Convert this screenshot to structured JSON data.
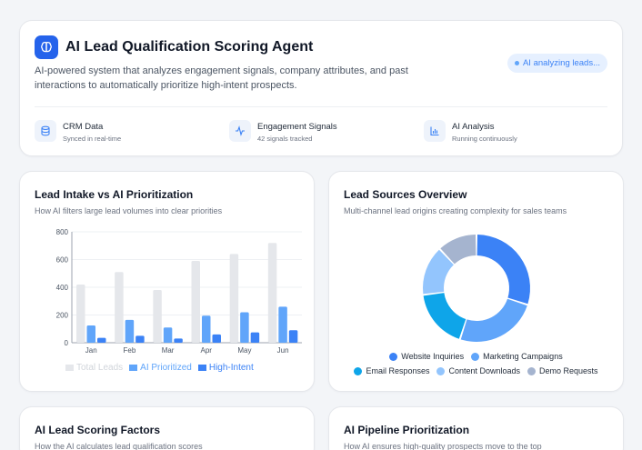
{
  "header": {
    "title": "AI Lead Qualification Scoring Agent",
    "description": "AI-powered system that analyzes engagement signals, company attributes, and past interactions to automatically prioritize high-intent prospects.",
    "status_pill": "AI analyzing leads...",
    "stats": [
      {
        "label": "CRM Data",
        "sub": "Synced in real-time",
        "icon": "database-icon"
      },
      {
        "label": "Engagement Signals",
        "sub": "42 signals tracked",
        "icon": "activity-icon"
      },
      {
        "label": "AI Analysis",
        "sub": "Running continuously",
        "icon": "bar-chart-icon"
      }
    ]
  },
  "intake_card": {
    "title": "Lead Intake vs AI Prioritization",
    "subtitle": "How AI filters large lead volumes into clear priorities"
  },
  "sources_card": {
    "title": "Lead Sources Overview",
    "subtitle": "Multi-channel lead origins creating complexity for sales teams"
  },
  "scoring_card": {
    "title": "AI Lead Scoring Factors",
    "subtitle": "How the AI calculates lead qualification scores"
  },
  "pipeline_card": {
    "title": "AI Pipeline Prioritization",
    "subtitle": "How AI ensures high-quality prospects move to the top"
  },
  "colors": {
    "accent": "#2563eb",
    "total": "#e5e7eb",
    "prioritized": "#60a5fa",
    "high_intent": "#3b82f6"
  },
  "chart_data": [
    {
      "type": "bar",
      "categories": [
        "Jan",
        "Feb",
        "Mar",
        "Apr",
        "May",
        "Jun"
      ],
      "series": [
        {
          "name": "Total Leads",
          "values": [
            420,
            510,
            380,
            590,
            640,
            720
          ],
          "color": "#e5e7eb"
        },
        {
          "name": "AI Prioritized",
          "values": [
            125,
            165,
            110,
            195,
            220,
            260
          ],
          "color": "#60a5fa"
        },
        {
          "name": "High-Intent",
          "values": [
            35,
            50,
            30,
            60,
            75,
            90
          ],
          "color": "#3b82f6"
        }
      ],
      "yticks": [
        0,
        200,
        400,
        600,
        800
      ],
      "ylim": [
        0,
        800
      ],
      "grid": true,
      "legend": "bottom"
    },
    {
      "type": "pie",
      "categories": [
        "Website Inquiries",
        "Marketing Campaigns",
        "Email Responses",
        "Content Downloads",
        "Demo Requests"
      ],
      "values": [
        30,
        25,
        18,
        15,
        12
      ],
      "colors": [
        "#3b82f6",
        "#60a5fa",
        "#0ea5e9",
        "#93c5fd",
        "#a5b4cf"
      ],
      "legend": "bottom"
    }
  ]
}
